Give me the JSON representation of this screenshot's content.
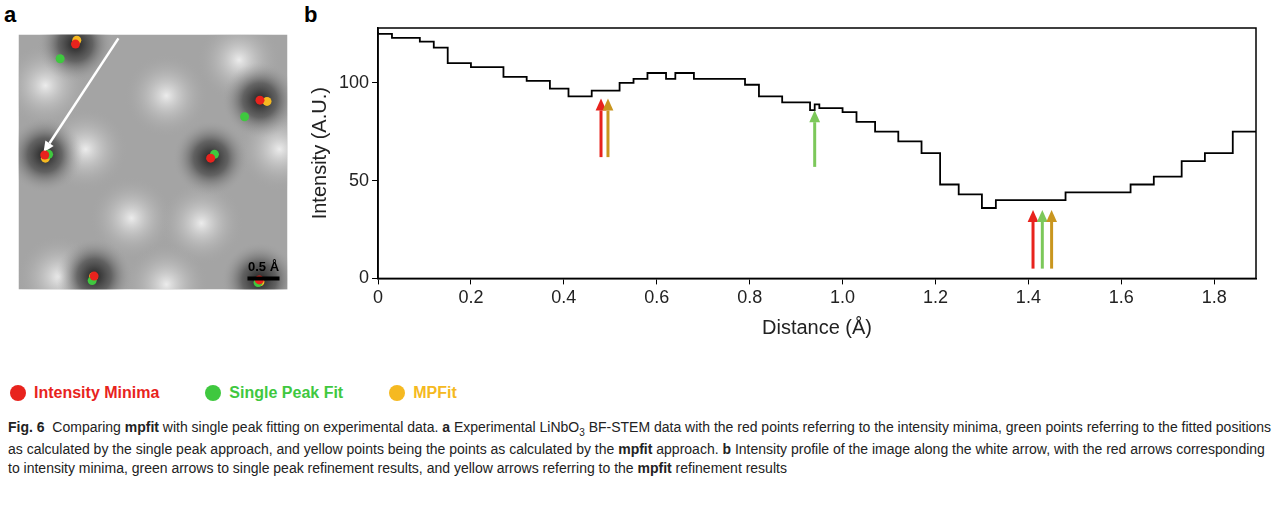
{
  "figure": {
    "caption": [
      {
        "text": "Fig. 6",
        "bold": true
      },
      {
        "text": "  Comparing "
      },
      {
        "text": "mpfit",
        "bold": true
      },
      {
        "text": " with single peak fitting on experimental data. "
      },
      {
        "text": "a",
        "bold": true
      },
      {
        "text": " Experimental LiNbO"
      },
      {
        "text": "3",
        "sub": true
      },
      {
        "text": " BF-STEM data with the red points referring to the intensity minima, green points referring to the fitted positions as calculated by the single peak approach, and yellow points being the points as calculated by the "
      },
      {
        "text": "mpfit",
        "bold": true
      },
      {
        "text": " approach. "
      },
      {
        "text": "b",
        "bold": true
      },
      {
        "text": " Intensity profile of the image along the white arrow, with the red arrows corresponding to intensity minima, green arrows to single peak refinement results, and yellow arrows referring to the "
      },
      {
        "text": "mpfit",
        "bold": true
      },
      {
        "text": " refinement results"
      }
    ]
  },
  "chart_data": [
    {
      "panel": "a",
      "type": "scatter",
      "marker": "circle",
      "tick_labels": false,
      "legend": "bottom",
      "xlim": [
        0,
        4.2
      ],
      "ylim": [
        0,
        4.0
      ],
      "scale_bar": {
        "value": 0.5,
        "label": "0.5 Å"
      },
      "profile_arrow": {
        "x": [
          1.56,
          0.39
        ],
        "y": [
          3.94,
          2.15
        ]
      },
      "series": [
        {
          "name": "Intensity Minima",
          "color": "#e8231d",
          "x": [
            0.89,
            0.41,
            3.0,
            3.77,
            1.18,
            3.76
          ],
          "y": [
            3.85,
            2.11,
            2.06,
            2.97,
            0.21,
            0.15
          ]
        },
        {
          "name": "Single Peak Fit",
          "color": "#3fc83f",
          "x": [
            0.65,
            0.47,
            3.06,
            3.53,
            1.15,
            3.74
          ],
          "y": [
            3.62,
            2.12,
            2.12,
            2.71,
            0.14,
            0.11
          ]
        },
        {
          "name": "MPFit",
          "color": "#f5b921",
          "x": [
            0.91,
            0.42,
            3.88,
            1.17,
            3.77
          ],
          "y": [
            3.91,
            2.06,
            2.95,
            0.2,
            0.12
          ]
        }
      ]
    },
    {
      "panel": "b",
      "type": "line",
      "grid": false,
      "x_label": "Distance (Å)",
      "y_label": "Intensity (A.U.)",
      "xlim": [
        0,
        1.89
      ],
      "ylim": [
        0,
        128
      ],
      "xticks": [
        0,
        0.2,
        0.4,
        0.6,
        0.8,
        {
          "value": 1,
          "label": "1.0"
        },
        1.2,
        1.4,
        1.6,
        1.8
      ],
      "yticks": [
        0,
        50,
        100
      ],
      "series": [
        {
          "type": "line",
          "line_style": "steps",
          "color": "#000000",
          "x": [
            0,
            0.03,
            0.09,
            0.12,
            0.15,
            0.2,
            0.27,
            0.32,
            0.37,
            0.41,
            0.46,
            0.52,
            0.55,
            0.58,
            0.62,
            0.64,
            0.68,
            0.79,
            0.82,
            0.87,
            0.93,
            0.94,
            0.95,
            1.0,
            1.03,
            1.07,
            1.12,
            1.17,
            1.21,
            1.25,
            1.3,
            1.33,
            1.48,
            1.62,
            1.67,
            1.73,
            1.78,
            1.84,
            1.88,
            1.89
          ],
          "values": [
            126,
            125,
            123,
            121,
            118,
            110,
            108,
            103,
            101,
            97,
            93,
            96,
            100,
            102,
            105,
            102,
            105,
            102,
            99,
            93,
            90,
            86,
            89,
            87,
            85,
            80,
            75,
            70,
            64,
            48,
            43,
            36,
            40,
            44,
            48,
            52,
            60,
            64,
            75,
            75
          ]
        },
        {
          "name": "Intensity Minima",
          "type": "arrow",
          "color": "#e8231d",
          "x": [
            0.48,
            1.41
          ],
          "y_from": [
            62,
            5
          ],
          "y_to": [
            92,
            35
          ]
        },
        {
          "name": "Single Peak Fit",
          "type": "arrow",
          "color": "#7cc85a",
          "x": [
            0.94,
            1.43
          ],
          "y_from": [
            57,
            5
          ],
          "y_to": [
            86,
            35
          ]
        },
        {
          "name": "MPFit",
          "type": "arrow",
          "color": "#c9961f",
          "x": [
            0.495,
            1.45
          ],
          "y_from": [
            62,
            5
          ],
          "y_to": [
            92,
            35
          ]
        }
      ]
    }
  ]
}
